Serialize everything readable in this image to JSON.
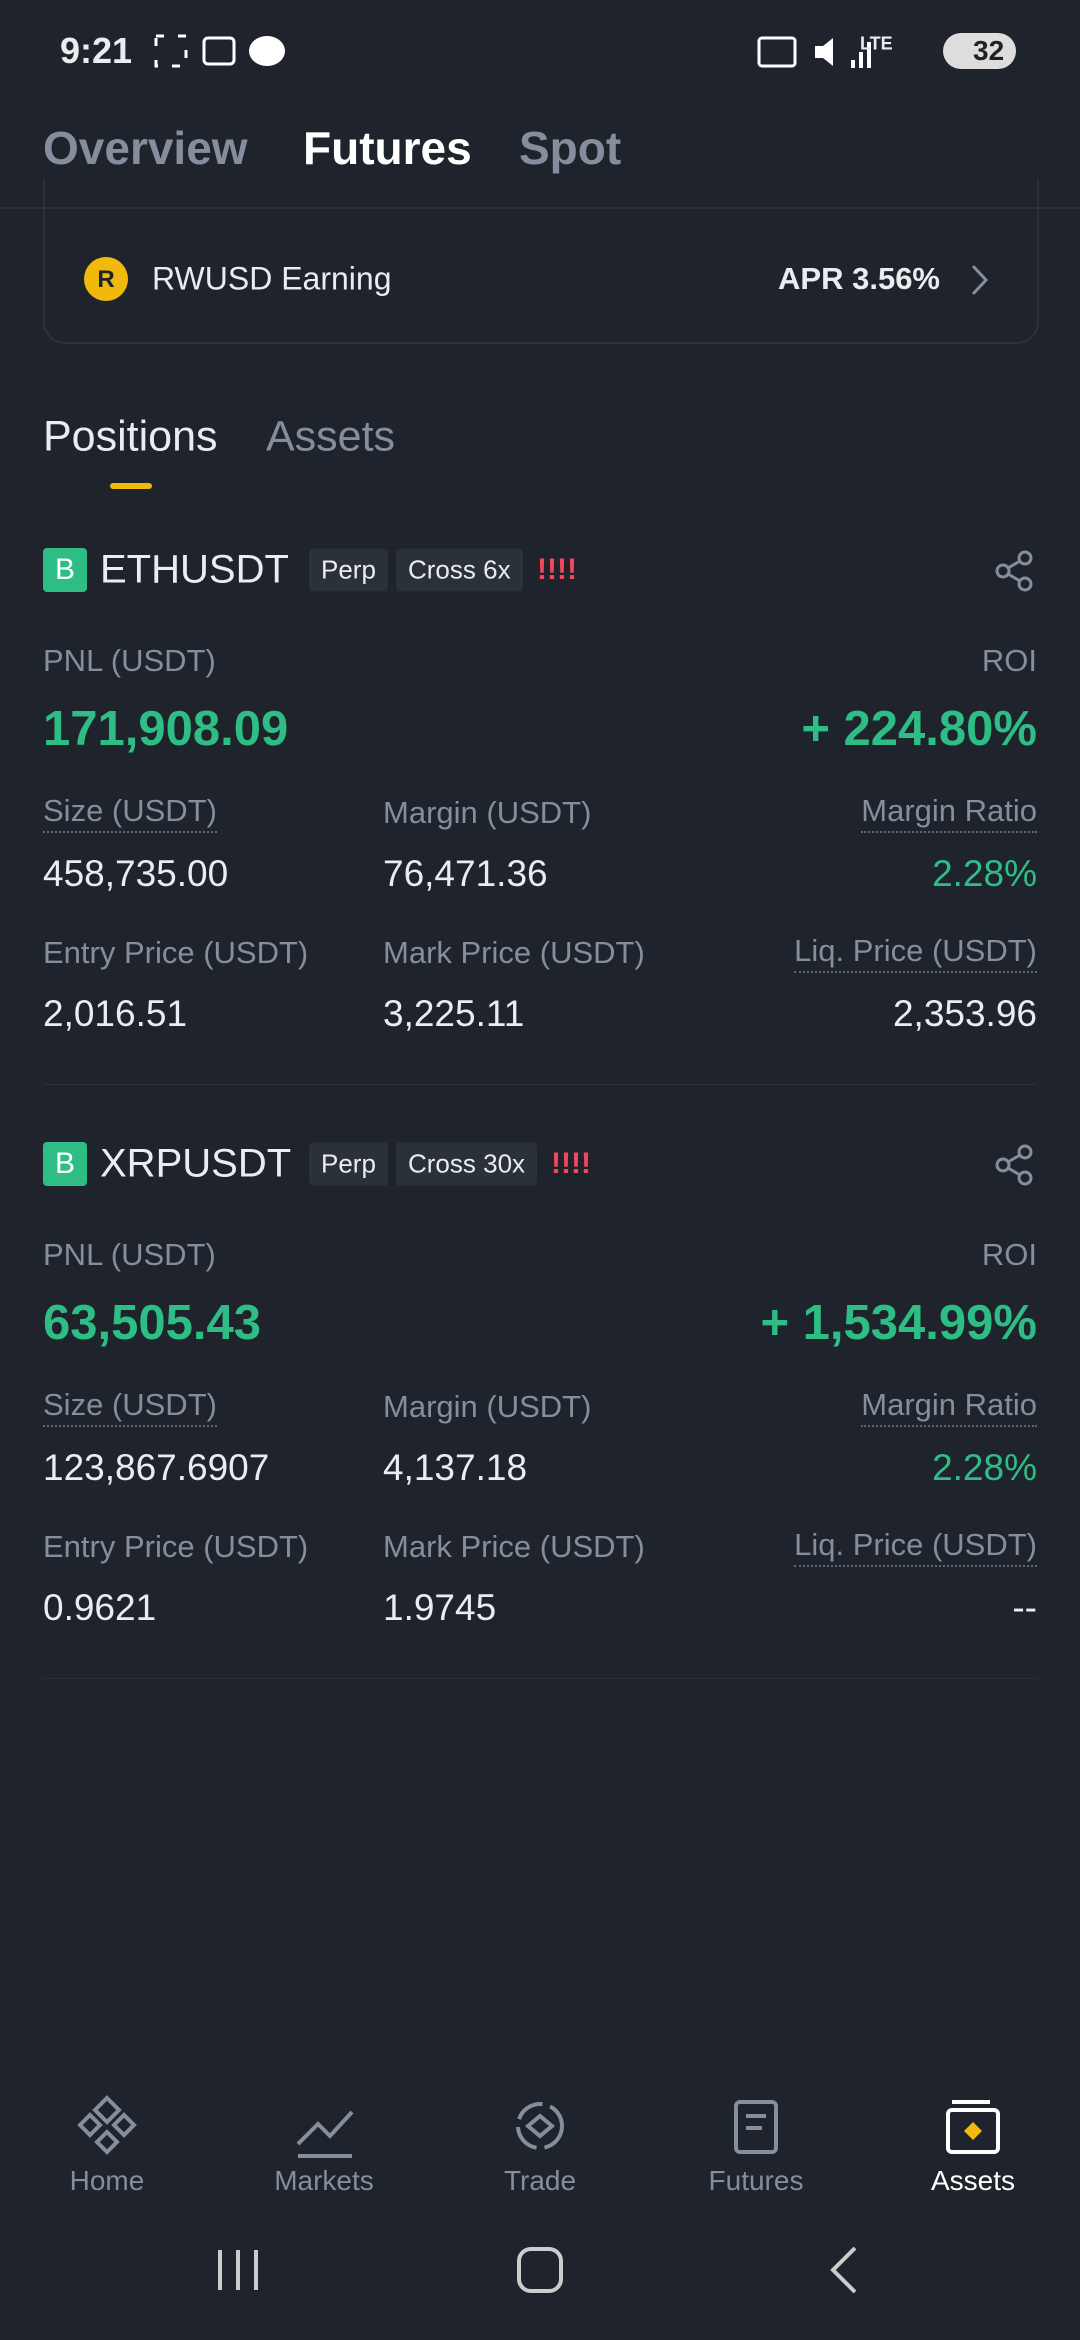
{
  "status_bar": {
    "time": "9:21",
    "network": "LTE",
    "battery": "32"
  },
  "top_tabs": [
    "Overview",
    "Futures",
    "Spot"
  ],
  "earn_card": {
    "name": "RWUSD Earning",
    "apr": "APR 3.56%"
  },
  "section_tabs": [
    "Positions",
    "Assets"
  ],
  "positions": [
    {
      "badge": "B",
      "symbol": "ETHUSDT",
      "type": "Perp",
      "margin_mode": "Cross 6x",
      "risk": "!!!!",
      "pnl_label": "PNL (USDT)",
      "pnl": "171,908.09",
      "roi_label": "ROI",
      "roi": "+ 224.80%",
      "fields": [
        {
          "label": "Size (USDT)",
          "value": "458,735.00"
        },
        {
          "label": "Margin (USDT)",
          "value": "76,471.36"
        },
        {
          "label": "Margin Ratio",
          "value": "2.28%"
        },
        {
          "label": "Entry Price (USDT)",
          "value": "2,016.51"
        },
        {
          "label": "Mark Price (USDT)",
          "value": "3,225.11"
        },
        {
          "label": "Liq. Price (USDT)",
          "value": "2,353.96"
        }
      ]
    },
    {
      "badge": "B",
      "symbol": "XRPUSDT",
      "type": "Perp",
      "margin_mode": "Cross 30x",
      "risk": "!!!!",
      "pnl_label": "PNL (USDT)",
      "pnl": "63,505.43",
      "roi_label": "ROI",
      "roi": "+ 1,534.99%",
      "fields": [
        {
          "label": "Size (USDT)",
          "value": "123,867.6907"
        },
        {
          "label": "Margin (USDT)",
          "value": "4,137.18"
        },
        {
          "label": "Margin Ratio",
          "value": "2.28%"
        },
        {
          "label": "Entry Price (USDT)",
          "value": "0.9621"
        },
        {
          "label": "Mark Price (USDT)",
          "value": "1.9745"
        },
        {
          "label": "Liq. Price (USDT)",
          "value": "--"
        }
      ]
    }
  ],
  "bottom_nav": [
    "Home",
    "Markets",
    "Trade",
    "Futures",
    "Assets"
  ]
}
